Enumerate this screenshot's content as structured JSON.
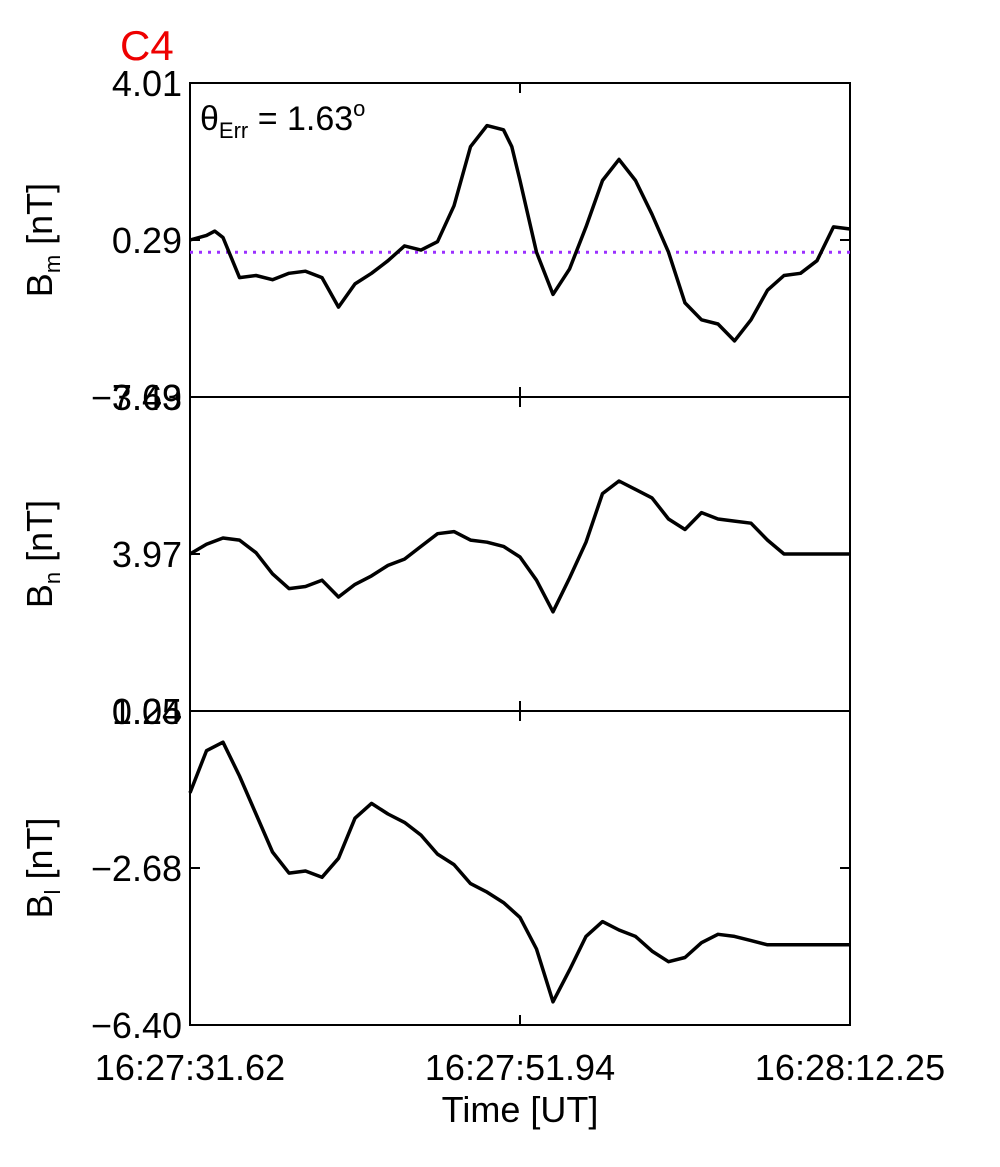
{
  "panel_tag": "C4",
  "colors": {
    "panel_tag": "#ee0000",
    "series": "#000000",
    "reference": "#9b30ff"
  },
  "chart_data": [
    {
      "type": "line",
      "ylabel": {
        "main": "B",
        "sub": "m",
        "unit": "[nT]"
      },
      "ylim": [
        -3.43,
        4.01
      ],
      "yticks": [
        "4.01",
        "0.29",
        "−3.43"
      ],
      "annotation": {
        "prefix": "θ",
        "sub": "Err",
        "text": "=  1.63",
        "sup": "o"
      },
      "reference_line": {
        "y": 0.0,
        "style": "dotted"
      },
      "x": [
        0,
        1,
        1.5,
        2,
        3,
        4,
        5,
        6,
        7,
        8,
        9,
        10,
        11,
        12,
        13,
        14,
        15,
        16,
        17,
        18,
        19,
        19.5,
        20,
        21,
        22,
        23,
        24,
        25,
        26,
        27,
        28,
        29,
        30,
        31,
        32,
        33,
        34,
        35,
        36,
        37,
        38,
        39,
        40
      ],
      "values": [
        0.29,
        0.4,
        0.5,
        0.35,
        -0.6,
        -0.55,
        -0.65,
        -0.5,
        -0.45,
        -0.6,
        -1.3,
        -0.75,
        -0.5,
        -0.2,
        0.15,
        0.05,
        0.25,
        1.1,
        2.5,
        3.0,
        2.9,
        2.5,
        1.7,
        0.0,
        -1.0,
        -0.4,
        0.6,
        1.7,
        2.2,
        1.7,
        0.9,
        0.0,
        -1.2,
        -1.6,
        -1.7,
        -2.1,
        -1.6,
        -0.9,
        -0.55,
        -0.5,
        -0.2,
        0.6,
        0.55
      ]
    },
    {
      "type": "line",
      "ylabel": {
        "main": "B",
        "sub": "n",
        "unit": "[nT]"
      },
      "ylim": [
        0.25,
        7.69
      ],
      "yticks": [
        "7.69",
        "3.97",
        "0.25"
      ],
      "x": [
        0,
        1,
        2,
        3,
        4,
        5,
        6,
        7,
        8,
        9,
        10,
        11,
        12,
        13,
        14,
        15,
        16,
        17,
        18,
        19,
        20,
        21,
        22,
        23,
        24,
        25,
        26,
        27,
        28,
        29,
        30,
        31,
        32,
        33,
        34,
        35,
        36,
        37,
        38,
        39,
        40
      ],
      "values": [
        3.97,
        4.2,
        4.35,
        4.3,
        4.0,
        3.5,
        3.15,
        3.2,
        3.35,
        2.95,
        3.25,
        3.45,
        3.7,
        3.85,
        4.15,
        4.45,
        4.5,
        4.3,
        4.25,
        4.15,
        3.9,
        3.35,
        2.6,
        3.4,
        4.25,
        5.4,
        5.7,
        5.5,
        5.3,
        4.8,
        4.55,
        4.95,
        4.8,
        4.75,
        4.7,
        4.3,
        3.97,
        3.97,
        3.97,
        3.97,
        3.97
      ]
    },
    {
      "type": "line",
      "ylabel": {
        "main": "B",
        "sub": "l",
        "unit": "[nT]"
      },
      "ylim": [
        -6.4,
        1.04
      ],
      "yticks": [
        "1.04",
        "−2.68",
        "−6.40"
      ],
      "x": [
        0,
        1,
        2,
        3,
        4,
        5,
        6,
        7,
        8,
        9,
        10,
        11,
        12,
        13,
        14,
        15,
        16,
        17,
        18,
        19,
        20,
        21,
        22,
        23,
        24,
        25,
        26,
        27,
        28,
        29,
        30,
        31,
        32,
        33,
        34,
        35,
        36,
        37,
        38,
        39,
        40
      ],
      "values": [
        -0.9,
        0.1,
        0.3,
        -0.5,
        -1.4,
        -2.3,
        -2.8,
        -2.75,
        -2.9,
        -2.45,
        -1.5,
        -1.15,
        -1.4,
        -1.6,
        -1.9,
        -2.35,
        -2.6,
        -3.05,
        -3.25,
        -3.5,
        -3.85,
        -4.6,
        -5.85,
        -5.1,
        -4.3,
        -3.95,
        -4.15,
        -4.3,
        -4.65,
        -4.9,
        -4.8,
        -4.45,
        -4.25,
        -4.3,
        -4.4,
        -4.5,
        -4.5,
        -4.5,
        -4.5,
        -4.5,
        -4.5
      ]
    }
  ],
  "xaxis": {
    "label": "Time [UT]",
    "ticks": [
      {
        "pos": 0,
        "label": "16:27:31.62"
      },
      {
        "pos": 20,
        "label": "16:27:51.94"
      },
      {
        "pos": 40,
        "label": "16:28:12.25"
      }
    ],
    "range": [
      0,
      40
    ]
  }
}
